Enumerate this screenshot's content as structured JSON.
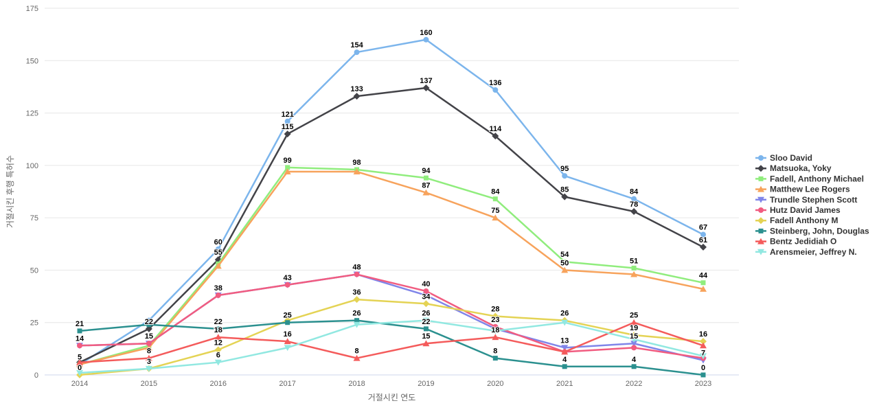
{
  "chart_data": {
    "type": "line",
    "title": "",
    "xlabel": "거절시킨 연도",
    "ylabel": "거절시킨 후행 특허수",
    "x": [
      2014,
      2015,
      2016,
      2017,
      2018,
      2019,
      2020,
      2021,
      2022,
      2023
    ],
    "x_tick_labels": [
      "2014",
      "2015",
      "2016",
      "2017",
      "2018",
      "2019",
      "2020",
      "2021",
      "2022",
      "2023"
    ],
    "ylim": [
      0,
      175
    ],
    "yticks": [
      0,
      25,
      50,
      75,
      100,
      125,
      150,
      175
    ],
    "grid": true,
    "legend_position": "right-middle",
    "series": [
      {
        "name": "Sloo David",
        "color": "#7cb5ec",
        "marker": "circle",
        "values": [
          5,
          26,
          60,
          121,
          154,
          160,
          136,
          95,
          84,
          67
        ],
        "label_visible": [
          true,
          false,
          true,
          true,
          true,
          true,
          true,
          true,
          true,
          true
        ]
      },
      {
        "name": "Matsuoka, Yoky",
        "color": "#434348",
        "marker": "diamond",
        "values": [
          6,
          22,
          55,
          115,
          133,
          137,
          114,
          85,
          78,
          61
        ],
        "label_visible": [
          false,
          true,
          true,
          true,
          true,
          true,
          true,
          true,
          true,
          true
        ]
      },
      {
        "name": "Fadell, Anthony Michael",
        "color": "#90ed7d",
        "marker": "square",
        "values": [
          5,
          14,
          53,
          99,
          98,
          94,
          84,
          54,
          51,
          44
        ],
        "label_visible": [
          false,
          false,
          false,
          true,
          true,
          true,
          true,
          true,
          true,
          true
        ]
      },
      {
        "name": "Matthew Lee Rogers",
        "color": "#f7a35c",
        "marker": "triangle",
        "values": [
          5,
          13,
          52,
          97,
          97,
          87,
          75,
          50,
          48,
          41
        ],
        "label_visible": [
          false,
          false,
          false,
          false,
          false,
          true,
          true,
          true,
          false,
          false
        ]
      },
      {
        "name": "Trundle Stephen Scott",
        "color": "#8085e9",
        "marker": "triangle-down",
        "values": [
          14,
          15,
          38,
          43,
          48,
          38,
          22,
          13,
          15,
          7
        ],
        "label_visible": [
          false,
          false,
          false,
          false,
          false,
          false,
          false,
          true,
          true,
          true
        ]
      },
      {
        "name": "Hutz David James",
        "color": "#f15c80",
        "marker": "circle",
        "values": [
          14,
          15,
          38,
          43,
          48,
          40,
          23,
          11,
          13,
          8
        ],
        "label_visible": [
          true,
          true,
          true,
          true,
          true,
          true,
          true,
          false,
          false,
          false
        ]
      },
      {
        "name": "Fadell Anthony M",
        "color": "#e4d354",
        "marker": "diamond",
        "values": [
          0,
          3,
          12,
          26,
          36,
          34,
          28,
          26,
          19,
          16
        ],
        "label_visible": [
          true,
          false,
          true,
          false,
          true,
          true,
          true,
          true,
          true,
          true
        ]
      },
      {
        "name": "Steinberg, John, Douglas",
        "color": "#2b908f",
        "marker": "square",
        "values": [
          21,
          24,
          22,
          25,
          26,
          22,
          8,
          4,
          4,
          0
        ],
        "label_visible": [
          true,
          false,
          true,
          true,
          true,
          true,
          true,
          true,
          true,
          true
        ]
      },
      {
        "name": "Bentz Jedidiah O",
        "color": "#f45b5b",
        "marker": "triangle",
        "values": [
          6,
          8,
          18,
          16,
          8,
          15,
          18,
          11,
          25,
          14
        ],
        "label_visible": [
          false,
          true,
          true,
          true,
          true,
          true,
          true,
          false,
          true,
          false
        ]
      },
      {
        "name": "Arensmeier, Jeffrey N.",
        "color": "#91e8e1",
        "marker": "triangle-down",
        "values": [
          1,
          3,
          6,
          13,
          24,
          26,
          21,
          25,
          17,
          9
        ],
        "label_visible": [
          false,
          true,
          true,
          false,
          false,
          true,
          false,
          false,
          false,
          false
        ]
      }
    ]
  }
}
